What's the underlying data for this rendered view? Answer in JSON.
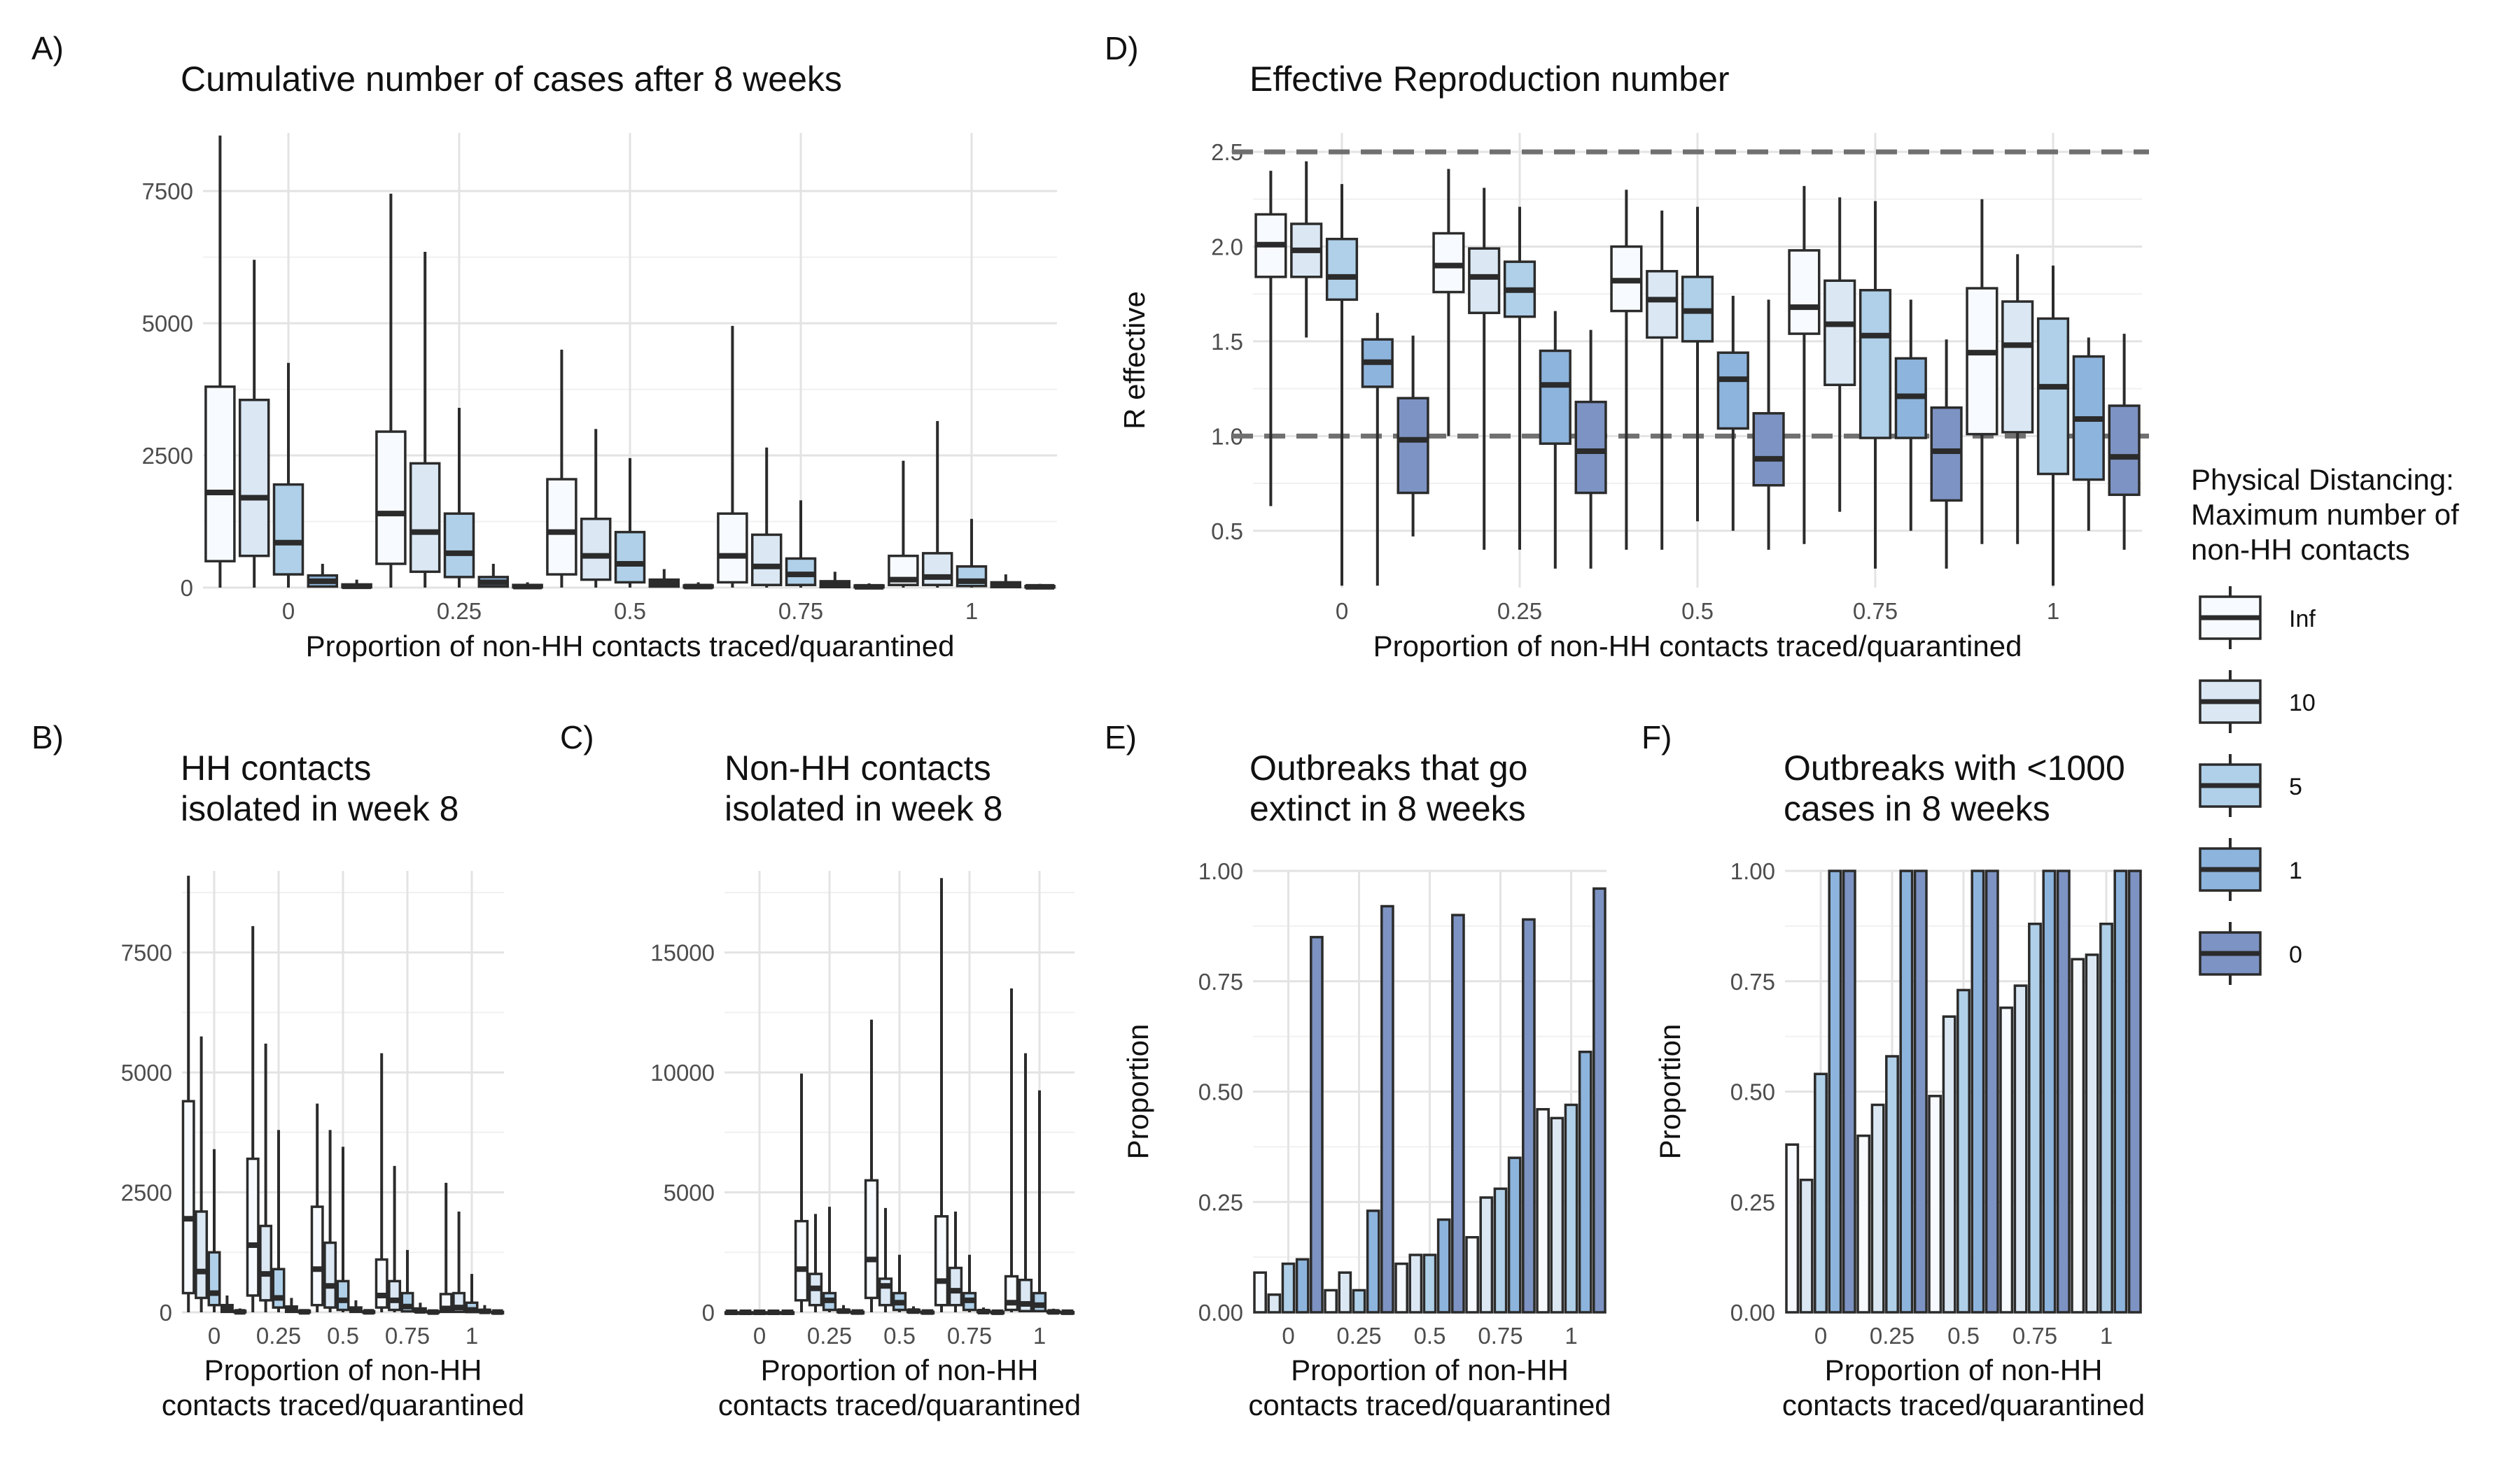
{
  "x_label": "Proportion of non-HH contacts traced/quarantined",
  "x_label_short": [
    "Proportion of non-HH",
    "contacts traced/quarantined"
  ],
  "x_ticks": [
    "0",
    "0.25",
    "0.5",
    "0.75",
    "1"
  ],
  "legend": {
    "title": [
      "Physical Distancing:",
      "Maximum number of",
      "non-HH contacts"
    ],
    "entries": [
      {
        "label": "Inf",
        "color": "#f7fbff"
      },
      {
        "label": "10",
        "color": "#dbe8f4"
      },
      {
        "label": "5",
        "color": "#afd0e8"
      },
      {
        "label": "1",
        "color": "#8db4dc"
      },
      {
        "label": "0",
        "color": "#7d93c3"
      }
    ]
  },
  "chart_data": [
    {
      "id": "A",
      "panel_letter": "A)",
      "type": "boxplot",
      "title": [
        "Cumulative number of cases after 8 weeks"
      ],
      "xlabel": "Proportion of non-HH contacts traced/quarantined",
      "ylabel": "",
      "yticks": [
        "0",
        "2500",
        "5000",
        "7500"
      ],
      "ylim": [
        0,
        8600
      ],
      "series_names": [
        "Inf",
        "10",
        "5",
        "1",
        "0"
      ],
      "boxes": [
        [
          [
            0,
            500,
            1800,
            3800,
            8550
          ],
          [
            0,
            600,
            1700,
            3550,
            6200
          ],
          [
            0,
            250,
            850,
            1950,
            4250
          ],
          [
            0,
            20,
            120,
            230,
            450
          ],
          [
            0,
            5,
            25,
            60,
            150
          ]
        ],
        [
          [
            0,
            450,
            1400,
            2950,
            7450
          ],
          [
            0,
            300,
            1050,
            2350,
            6350
          ],
          [
            0,
            200,
            650,
            1400,
            3400
          ],
          [
            0,
            20,
            100,
            200,
            450
          ],
          [
            0,
            5,
            20,
            50,
            100
          ]
        ],
        [
          [
            0,
            250,
            1050,
            2050,
            4500
          ],
          [
            0,
            150,
            600,
            1300,
            3000
          ],
          [
            0,
            100,
            450,
            1050,
            2450
          ],
          [
            0,
            20,
            80,
            150,
            350
          ],
          [
            0,
            5,
            20,
            40,
            100
          ]
        ],
        [
          [
            0,
            100,
            600,
            1400,
            4950
          ],
          [
            0,
            50,
            400,
            1000,
            2650
          ],
          [
            0,
            50,
            250,
            550,
            1650
          ],
          [
            0,
            10,
            60,
            120,
            300
          ],
          [
            0,
            5,
            15,
            40,
            80
          ]
        ],
        [
          [
            0,
            50,
            150,
            600,
            2400
          ],
          [
            0,
            50,
            200,
            650,
            3150
          ],
          [
            0,
            30,
            120,
            400,
            1300
          ],
          [
            0,
            10,
            50,
            100,
            250
          ],
          [
            0,
            5,
            15,
            30,
            70
          ]
        ]
      ]
    },
    {
      "id": "B",
      "panel_letter": "B)",
      "type": "boxplot",
      "title": [
        "HH contacts",
        "isolated in week 8"
      ],
      "xlabel": "Proportion of non-HH contacts traced/quarantined",
      "ylabel": "",
      "yticks": [
        "0",
        "2500",
        "5000",
        "7500"
      ],
      "ylim": [
        0,
        9200
      ],
      "series_names": [
        "Inf",
        "10",
        "5",
        "1",
        "0"
      ],
      "boxes": [
        [
          [
            0,
            400,
            1950,
            4400,
            9100
          ],
          [
            0,
            300,
            850,
            2100,
            5750
          ],
          [
            0,
            150,
            400,
            1250,
            3400
          ],
          [
            0,
            10,
            80,
            150,
            350
          ],
          [
            0,
            0,
            10,
            30,
            80
          ]
        ],
        [
          [
            0,
            350,
            1400,
            3200,
            8050
          ],
          [
            0,
            250,
            800,
            1800,
            5600
          ],
          [
            0,
            100,
            300,
            900,
            3800
          ],
          [
            0,
            10,
            60,
            120,
            300
          ],
          [
            0,
            0,
            10,
            30,
            60
          ]
        ],
        [
          [
            0,
            150,
            900,
            2200,
            4350
          ],
          [
            0,
            100,
            550,
            1450,
            3800
          ],
          [
            0,
            50,
            250,
            650,
            3450
          ],
          [
            0,
            10,
            50,
            100,
            250
          ],
          [
            0,
            0,
            10,
            20,
            50
          ]
        ],
        [
          [
            0,
            100,
            350,
            1100,
            5400
          ],
          [
            0,
            50,
            250,
            650,
            3050
          ],
          [
            0,
            20,
            120,
            400,
            1300
          ],
          [
            0,
            10,
            30,
            80,
            200
          ],
          [
            0,
            0,
            5,
            20,
            40
          ]
        ],
        [
          [
            0,
            10,
            80,
            380,
            2700
          ],
          [
            0,
            10,
            100,
            400,
            2100
          ],
          [
            0,
            5,
            50,
            200,
            800
          ],
          [
            0,
            5,
            20,
            50,
            150
          ],
          [
            0,
            0,
            5,
            10,
            30
          ]
        ]
      ]
    },
    {
      "id": "C",
      "panel_letter": "C)",
      "type": "boxplot",
      "title": [
        "Non-HH contacts",
        "isolated in week 8"
      ],
      "xlabel": "Proportion of non-HH contacts traced/quarantined",
      "ylabel": "",
      "yticks": [
        "0",
        "5000",
        "10000",
        "15000"
      ],
      "ylim": [
        0,
        18400
      ],
      "series_names": [
        "Inf",
        "10",
        "5",
        "1",
        "0"
      ],
      "boxes": [
        [
          [
            0,
            0,
            0,
            0,
            0
          ],
          [
            0,
            0,
            0,
            0,
            0
          ],
          [
            0,
            0,
            0,
            0,
            0
          ],
          [
            0,
            0,
            0,
            0,
            0
          ],
          [
            0,
            0,
            0,
            0,
            0
          ]
        ],
        [
          [
            0,
            500,
            1800,
            3800,
            9950
          ],
          [
            0,
            300,
            1000,
            1600,
            4100
          ],
          [
            0,
            100,
            500,
            800,
            4400
          ],
          [
            0,
            10,
            50,
            100,
            300
          ],
          [
            0,
            0,
            10,
            20,
            60
          ]
        ],
        [
          [
            0,
            600,
            2200,
            5500,
            12200
          ],
          [
            0,
            300,
            1100,
            1400,
            4350
          ],
          [
            0,
            100,
            400,
            800,
            2400
          ],
          [
            0,
            10,
            50,
            100,
            250
          ],
          [
            0,
            0,
            10,
            20,
            50
          ]
        ],
        [
          [
            0,
            300,
            1300,
            4000,
            18100
          ],
          [
            0,
            300,
            900,
            1850,
            4200
          ],
          [
            0,
            100,
            500,
            800,
            2400
          ],
          [
            0,
            10,
            30,
            80,
            200
          ],
          [
            0,
            0,
            5,
            20,
            40
          ]
        ],
        [
          [
            0,
            100,
            400,
            1500,
            13500
          ],
          [
            0,
            50,
            350,
            1350,
            10800
          ],
          [
            0,
            50,
            300,
            800,
            9250
          ],
          [
            0,
            5,
            20,
            50,
            150
          ],
          [
            0,
            0,
            5,
            10,
            30
          ]
        ]
      ]
    },
    {
      "id": "D",
      "panel_letter": "D)",
      "type": "boxplot",
      "title": [
        "Effective Reproduction number"
      ],
      "xlabel": "Proportion of non-HH contacts traced/quarantined",
      "ylabel": "R effective",
      "yticks": [
        "0.5",
        "1.0",
        "1.5",
        "2.0",
        "2.5"
      ],
      "ylim": [
        0.2,
        2.6
      ],
      "hlines": [
        1.0,
        2.5
      ],
      "series_names": [
        "Inf",
        "10",
        "5",
        "1",
        "0"
      ],
      "boxes": [
        [
          [
            0.63,
            1.84,
            2.01,
            2.17,
            2.4
          ],
          [
            1.52,
            1.84,
            1.98,
            2.12,
            2.45
          ],
          [
            0.21,
            1.72,
            1.84,
            2.04,
            2.33
          ],
          [
            0.21,
            1.26,
            1.39,
            1.51,
            1.65
          ],
          [
            0.47,
            0.7,
            0.98,
            1.2,
            1.53
          ]
        ],
        [
          [
            1.0,
            1.76,
            1.9,
            2.07,
            2.41
          ],
          [
            0.4,
            1.65,
            1.84,
            1.99,
            2.31
          ],
          [
            0.4,
            1.63,
            1.77,
            1.92,
            2.21
          ],
          [
            0.3,
            0.96,
            1.27,
            1.45,
            1.66
          ],
          [
            0.3,
            0.7,
            0.92,
            1.18,
            1.56
          ]
        ],
        [
          [
            0.4,
            1.66,
            1.82,
            2.0,
            2.3
          ],
          [
            0.4,
            1.52,
            1.72,
            1.87,
            2.19
          ],
          [
            0.55,
            1.5,
            1.66,
            1.84,
            2.21
          ],
          [
            0.5,
            1.04,
            1.3,
            1.44,
            1.74
          ],
          [
            0.4,
            0.74,
            0.88,
            1.12,
            1.72
          ]
        ],
        [
          [
            0.43,
            1.54,
            1.68,
            1.98,
            2.32
          ],
          [
            0.6,
            1.27,
            1.59,
            1.82,
            2.26
          ],
          [
            0.3,
            0.99,
            1.53,
            1.77,
            2.24
          ],
          [
            0.5,
            0.99,
            1.21,
            1.41,
            1.72
          ],
          [
            0.3,
            0.66,
            0.92,
            1.15,
            1.51
          ]
        ],
        [
          [
            0.43,
            1.01,
            1.44,
            1.78,
            2.25
          ],
          [
            0.43,
            1.02,
            1.48,
            1.71,
            1.96
          ],
          [
            0.21,
            0.8,
            1.26,
            1.62,
            1.9
          ],
          [
            0.5,
            0.77,
            1.09,
            1.42,
            1.52
          ],
          [
            0.4,
            0.69,
            0.89,
            1.16,
            1.54
          ]
        ]
      ]
    },
    {
      "id": "E",
      "panel_letter": "E)",
      "type": "bar",
      "title": [
        "Outbreaks that go",
        "extinct in 8 weeks"
      ],
      "xlabel": "Proportion of non-HH contacts traced/quarantined",
      "ylabel": "Proportion",
      "yticks": [
        "0.00",
        "0.25",
        "0.50",
        "0.75",
        "1.00"
      ],
      "ylim": [
        0,
        1
      ],
      "series_names": [
        "Inf",
        "10",
        "5",
        "1",
        "0"
      ],
      "values": [
        [
          0.09,
          0.04,
          0.11,
          0.12,
          0.85
        ],
        [
          0.05,
          0.09,
          0.05,
          0.23,
          0.92
        ],
        [
          0.11,
          0.13,
          0.13,
          0.21,
          0.9
        ],
        [
          0.17,
          0.26,
          0.28,
          0.35,
          0.89
        ],
        [
          0.46,
          0.44,
          0.47,
          0.59,
          0.96
        ]
      ]
    },
    {
      "id": "F",
      "panel_letter": "F)",
      "type": "bar",
      "title": [
        "Outbreaks with <1000",
        "cases in 8 weeks"
      ],
      "xlabel": "Proportion of non-HH contacts traced/quarantined",
      "ylabel": "Proportion",
      "yticks": [
        "0.00",
        "0.25",
        "0.50",
        "0.75",
        "1.00"
      ],
      "ylim": [
        0,
        1
      ],
      "series_names": [
        "Inf",
        "10",
        "5",
        "1",
        "0"
      ],
      "values": [
        [
          0.38,
          0.3,
          0.54,
          1.0,
          1.0
        ],
        [
          0.4,
          0.47,
          0.58,
          1.0,
          1.0
        ],
        [
          0.49,
          0.67,
          0.73,
          1.0,
          1.0
        ],
        [
          0.69,
          0.74,
          0.88,
          1.0,
          1.0
        ],
        [
          0.8,
          0.81,
          0.88,
          1.0,
          1.0
        ]
      ]
    }
  ]
}
